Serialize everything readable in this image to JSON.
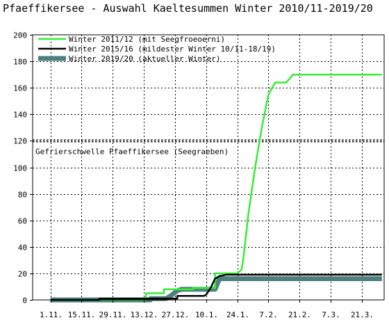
{
  "chart_data": {
    "type": "line",
    "title": "Pfaeffikersee - Auswahl Kaeltesummen Winter 2010/11-2019/20",
    "xlabel": "",
    "ylabel": "",
    "x_unit": "days since 1.11.",
    "xlim": [
      -8,
      150
    ],
    "ylim": [
      0,
      200
    ],
    "grid": true,
    "legend_position": "top-left",
    "x_ticks": [
      {
        "x": 0,
        "label": "1.11."
      },
      {
        "x": 14,
        "label": "15.11."
      },
      {
        "x": 28,
        "label": "29.11."
      },
      {
        "x": 42,
        "label": "13.12."
      },
      {
        "x": 56,
        "label": "27.12."
      },
      {
        "x": 70,
        "label": "10.1."
      },
      {
        "x": 84,
        "label": "24.1."
      },
      {
        "x": 98,
        "label": "7.2."
      },
      {
        "x": 112,
        "label": "21.2."
      },
      {
        "x": 126,
        "label": "7.3."
      },
      {
        "x": 140,
        "label": "21.3."
      }
    ],
    "y_ticks": [
      0,
      20,
      40,
      60,
      80,
      100,
      120,
      140,
      160,
      180,
      200
    ],
    "threshold": {
      "y": 120,
      "label": "Gefrierschwelle Pfaeffikersee (Seegraeben)",
      "color": "#000000"
    },
    "series": [
      {
        "name": "Winter 2011/12 (mit Seegfroeoerni)",
        "color": "#33ee33",
        "stroke": "thin",
        "x": [
          0,
          43,
          43,
          51,
          51,
          64,
          64,
          74,
          74,
          84,
          86,
          87,
          89,
          92,
          95,
          98,
          101,
          102,
          104,
          106,
          107,
          109,
          149
        ],
        "y": [
          0,
          0,
          5,
          5,
          8,
          8,
          9,
          9,
          20,
          20,
          23,
          35,
          65,
          100,
          130,
          155,
          164,
          164,
          164,
          164,
          166,
          170,
          170
        ]
      },
      {
        "name": "Winter 2015/16 (mildester Winter 10/11-18/19)",
        "color": "#000000",
        "stroke": "thin",
        "x": [
          0,
          22,
          22,
          57,
          57,
          69,
          70,
          72,
          74,
          76,
          79,
          149
        ],
        "y": [
          0,
          0,
          1,
          1,
          3,
          3,
          4,
          9,
          16,
          18,
          19,
          19
        ]
      },
      {
        "name": "Winter 2019/20 (aktueller Winter)",
        "color": "#4f7f7f",
        "stroke": "thick",
        "x": [
          0,
          28,
          28,
          45,
          45,
          52,
          54,
          57,
          59,
          65,
          68,
          70,
          74,
          76,
          149
        ],
        "y": [
          0,
          0,
          0,
          0,
          1,
          1,
          3,
          7,
          8,
          8,
          8,
          8,
          8,
          16,
          16
        ]
      }
    ]
  }
}
